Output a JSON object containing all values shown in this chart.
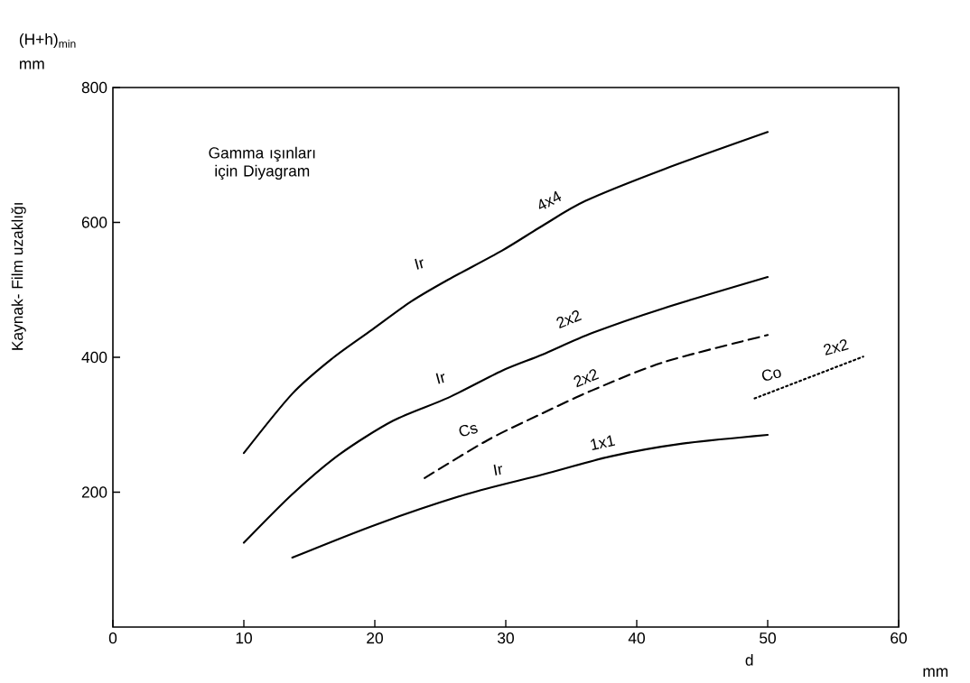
{
  "chart_data": {
    "type": "line",
    "title": "Gamma ışınları için Diyagram",
    "xlabel": "d",
    "ylabel": "Kaynak- Film uzaklığı",
    "xlim": [
      0,
      60
    ],
    "ylim": [
      0,
      800
    ],
    "xticks": [
      0,
      10,
      20,
      30,
      40,
      50,
      60
    ],
    "yticks": [
      200,
      400,
      600,
      800
    ],
    "series": [
      {
        "color": "#000000",
        "line_style": "solid",
        "x": [
          10,
          13.7,
          16.8,
          19.8,
          22.8,
          25.6,
          29.7,
          32.8,
          36.1,
          42.1,
          50
        ],
        "values": [
          258,
          346,
          399,
          441,
          483,
          515,
          558,
          595,
          632,
          679,
          734
        ]
      },
      {
        "color": "#000000",
        "line_style": "solid",
        "x": [
          10,
          13.7,
          17.3,
          21.4,
          25.6,
          29.7,
          32.8,
          36.6,
          42.1,
          50
        ],
        "values": [
          125,
          197,
          256,
          306,
          340,
          380,
          404,
          436,
          473,
          519
        ]
      },
      {
        "color": "#000000",
        "line_style": "dashed",
        "x": [
          23.8,
          28.6,
          32.8,
          36.6,
          42.1,
          50
        ],
        "values": [
          221,
          277,
          317,
          351,
          393,
          433
        ]
      },
      {
        "color": "#000000",
        "line_style": "solid",
        "x": [
          13.7,
          20.1,
          27,
          32.8,
          38,
          43.5,
          50
        ],
        "values": [
          103,
          152,
          197,
          226,
          253,
          272,
          285
        ]
      },
      {
        "color": "#000000",
        "line_style": "dotted",
        "x": [
          49,
          57.3
        ],
        "values": [
          339,
          401
        ]
      }
    ],
    "annotations": [
      "Ir",
      "4x4",
      "Ir",
      "2x2",
      "Cs",
      "2x2",
      "Ir",
      "1x1",
      "Co",
      "2x2",
      "(H+h)$_{min}$",
      "mm",
      "mm"
    ]
  }
}
